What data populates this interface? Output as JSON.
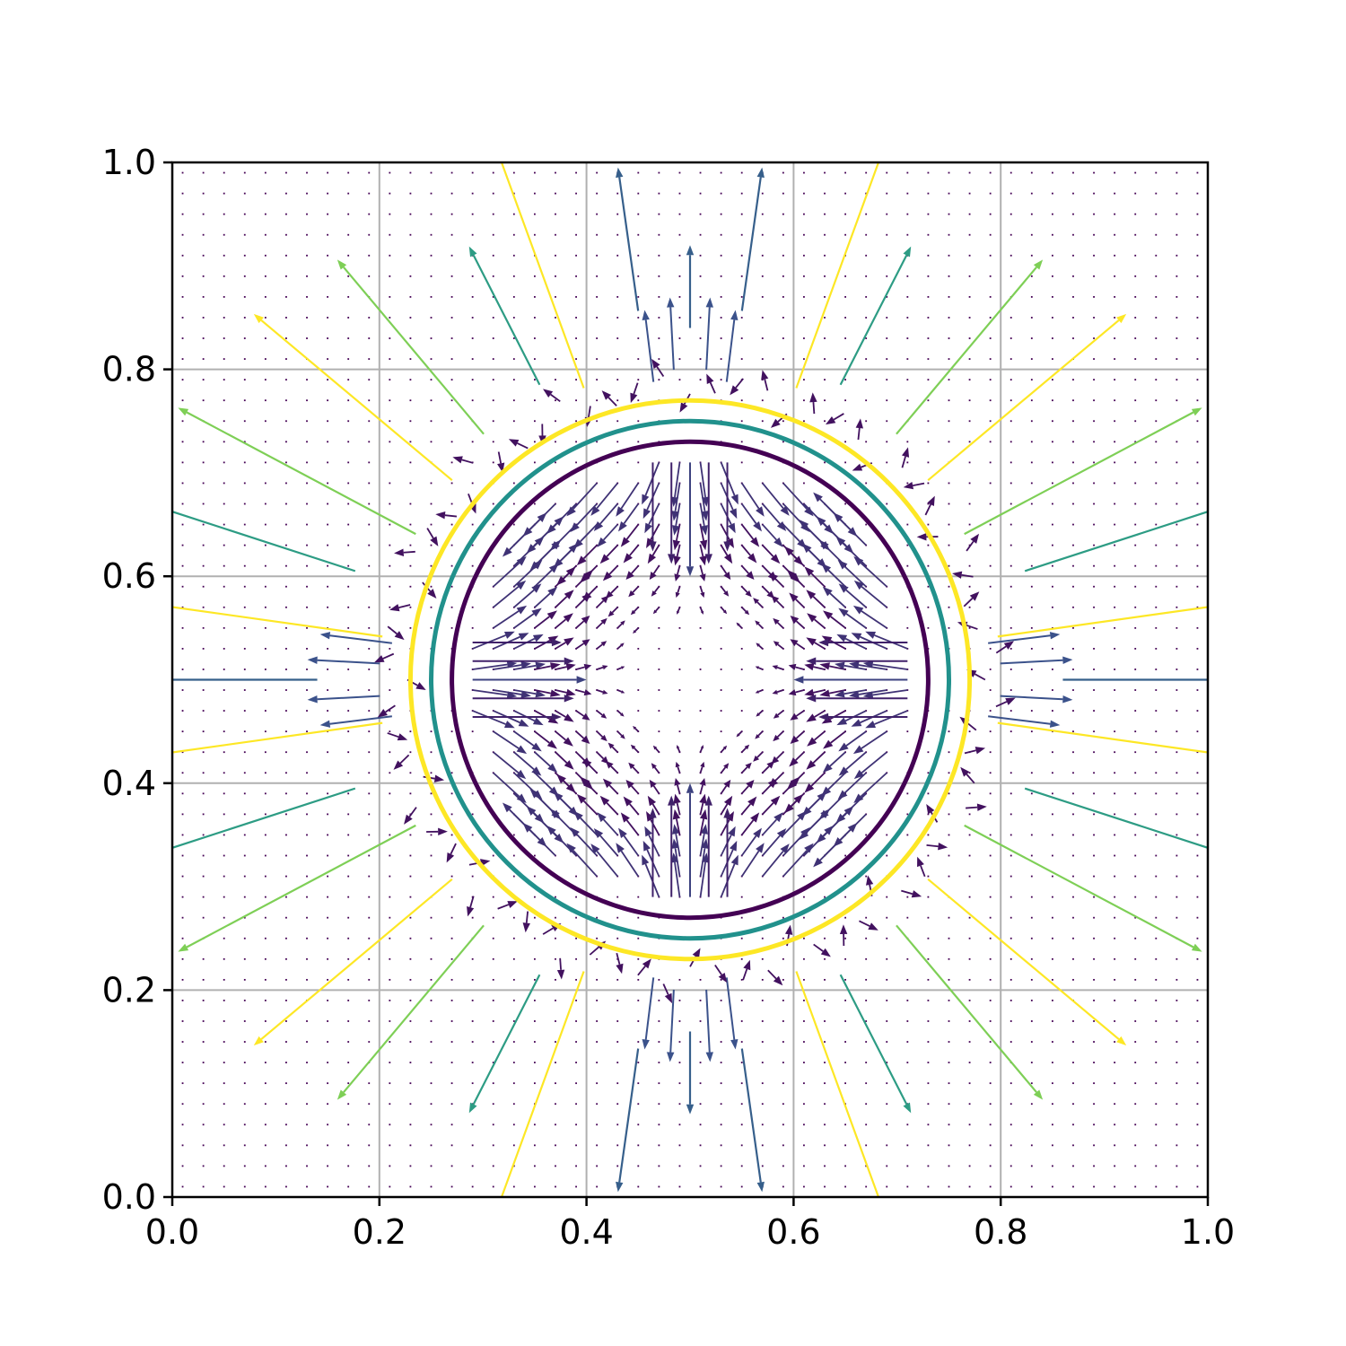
{
  "chart_data": {
    "type": "scatter",
    "title": "",
    "xlabel": "",
    "ylabel": "",
    "xlim": [
      0.0,
      1.0
    ],
    "ylim": [
      0.0,
      1.0
    ],
    "x_ticks": [
      "0.0",
      "0.2",
      "0.4",
      "0.6",
      "0.8",
      "1.0"
    ],
    "y_ticks": [
      "0.0",
      "0.2",
      "0.4",
      "0.6",
      "0.8",
      "1.0"
    ],
    "grid": true,
    "legend": "none",
    "colormap": [
      "#440154",
      "#3b528b",
      "#21918c",
      "#5ec962",
      "#fde725"
    ],
    "series": [
      {
        "kind": "circle",
        "center": [
          0.5,
          0.5
        ],
        "radius": 0.27,
        "color": "#fde725"
      },
      {
        "kind": "circle",
        "center": [
          0.5,
          0.5
        ],
        "radius": 0.25,
        "color": "#21918c"
      },
      {
        "kind": "circle",
        "center": [
          0.5,
          0.5
        ],
        "radius": 0.23,
        "color": "#440154"
      },
      {
        "kind": "quiver",
        "description": "vector field radiating from the circular interface, largest magnitudes just outside the rings and near-zero away from them"
      }
    ]
  }
}
